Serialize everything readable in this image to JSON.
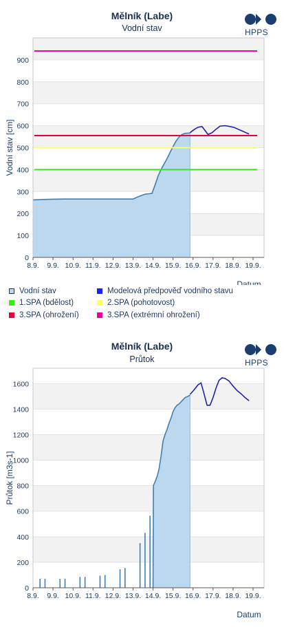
{
  "colors": {
    "area_fill": "#bcd8ef",
    "observed_line": "#3f7fb0",
    "forecast_line": "#1e22a8",
    "spa1": "#33ee11",
    "spa2": "#ffff66",
    "spa3": "#e8003a",
    "spa_extreme": "#e8009a",
    "grid_band": "#f2f2f2"
  },
  "logo": {
    "text": "HPPS",
    "icon": "hpps-logo-icon"
  },
  "chart_data": [
    {
      "type": "line",
      "title": "Mělník (Labe)",
      "subtitle": "Vodní stav",
      "ylabel": "Vodní stav [cm]",
      "xlabel": "Datum",
      "ylim": [
        0,
        1000
      ],
      "yticks": [
        0,
        100,
        200,
        300,
        400,
        500,
        600,
        700,
        800,
        900
      ],
      "xlim": [
        0,
        11.55
      ],
      "xticks": [
        "8.9.",
        "9.9.",
        "10.9.",
        "11.9.",
        "12.9.",
        "13.9.",
        "14.9.",
        "15.9.",
        "16.9.",
        "17.9.",
        "18.9.",
        "19.9."
      ],
      "grid": true,
      "legend_position": "bottom",
      "legend": [
        {
          "label": "Vodní stav",
          "swatch": "area"
        },
        {
          "label": "Modelová předpověď vodního stavu",
          "swatch": "forecast"
        },
        {
          "label": "1.SPA (bdělost)",
          "swatch": "spa1"
        },
        {
          "label": "2.SPA (pohotovost)",
          "swatch": "spa2"
        },
        {
          "label": "3.SPA (ohrožení)",
          "swatch": "spa3"
        },
        {
          "label": "3.SPA (extrémní ohrožení)",
          "swatch": "spa_extreme"
        }
      ],
      "thresholds": [
        {
          "value": 400,
          "color_key": "spa1"
        },
        {
          "value": 500,
          "color_key": "spa2"
        },
        {
          "value": 555,
          "color_key": "spa3"
        },
        {
          "value": 940,
          "color_key": "spa_extreme"
        }
      ],
      "observed": {
        "x": [
          0,
          0.5,
          1,
          1.5,
          2,
          2.5,
          3,
          3.5,
          4,
          4.5,
          5,
          5.3,
          5.6,
          5.8,
          5.95,
          6.1,
          6.25,
          6.4,
          6.55,
          6.7,
          6.85,
          7.0,
          7.15,
          7.3,
          7.45,
          7.6,
          7.75,
          7.85
        ],
        "y": [
          262,
          264,
          265,
          266,
          266,
          266,
          266,
          266,
          266,
          266,
          266,
          278,
          288,
          290,
          292,
          330,
          370,
          400,
          425,
          450,
          478,
          505,
          530,
          548,
          560,
          565,
          566,
          567
        ]
      },
      "forecast": {
        "x": [
          7.85,
          8.05,
          8.25,
          8.45,
          8.55,
          8.75,
          8.95,
          9.15,
          9.35,
          9.6,
          9.85,
          10.05,
          10.25,
          10.45,
          10.65,
          10.8
        ],
        "y": [
          568,
          582,
          593,
          596,
          584,
          560,
          568,
          584,
          598,
          600,
          596,
          592,
          584,
          576,
          568,
          562
        ]
      }
    },
    {
      "type": "line",
      "title": "Mělník (Labe)",
      "subtitle": "Průtok",
      "ylabel": "Průtok [m3s-1]",
      "xlabel": "Datum",
      "ylim": [
        0,
        1720
      ],
      "yticks": [
        0,
        200,
        400,
        600,
        800,
        1000,
        1200,
        1400,
        1600
      ],
      "xlim": [
        0,
        11.55
      ],
      "xticks": [
        "8.9.",
        "9.9.",
        "10.9.",
        "11.9.",
        "12.9.",
        "13.9.",
        "14.9.",
        "15.9.",
        "16.9.",
        "17.9.",
        "18.9.",
        "19.9."
      ],
      "grid": true,
      "spikes": [
        {
          "x": 0.35,
          "y": 70
        },
        {
          "x": 0.6,
          "y": 70
        },
        {
          "x": 1.35,
          "y": 70
        },
        {
          "x": 1.6,
          "y": 70
        },
        {
          "x": 2.35,
          "y": 85
        },
        {
          "x": 2.6,
          "y": 85
        },
        {
          "x": 3.35,
          "y": 95
        },
        {
          "x": 3.6,
          "y": 100
        },
        {
          "x": 4.35,
          "y": 145
        },
        {
          "x": 4.6,
          "y": 155
        },
        {
          "x": 5.35,
          "y": 350
        },
        {
          "x": 5.6,
          "y": 430
        },
        {
          "x": 5.85,
          "y": 565
        }
      ],
      "observed": {
        "x": [
          6.0,
          6.02,
          6.1,
          6.2,
          6.3,
          6.4,
          6.5,
          6.6,
          6.7,
          6.8,
          6.9,
          7.0,
          7.1,
          7.2,
          7.3,
          7.45,
          7.6,
          7.75,
          7.85
        ],
        "y": [
          0,
          800,
          830,
          870,
          930,
          1030,
          1150,
          1200,
          1240,
          1290,
          1330,
          1380,
          1410,
          1430,
          1440,
          1465,
          1490,
          1500,
          1510
        ]
      },
      "forecast": {
        "x": [
          7.85,
          8.05,
          8.25,
          8.4,
          8.55,
          8.7,
          8.85,
          9.0,
          9.15,
          9.3,
          9.45,
          9.6,
          9.8,
          10.0,
          10.2,
          10.4,
          10.6,
          10.8
        ],
        "y": [
          1515,
          1550,
          1590,
          1605,
          1520,
          1430,
          1430,
          1490,
          1565,
          1625,
          1645,
          1640,
          1620,
          1580,
          1545,
          1520,
          1490,
          1465
        ]
      }
    }
  ]
}
